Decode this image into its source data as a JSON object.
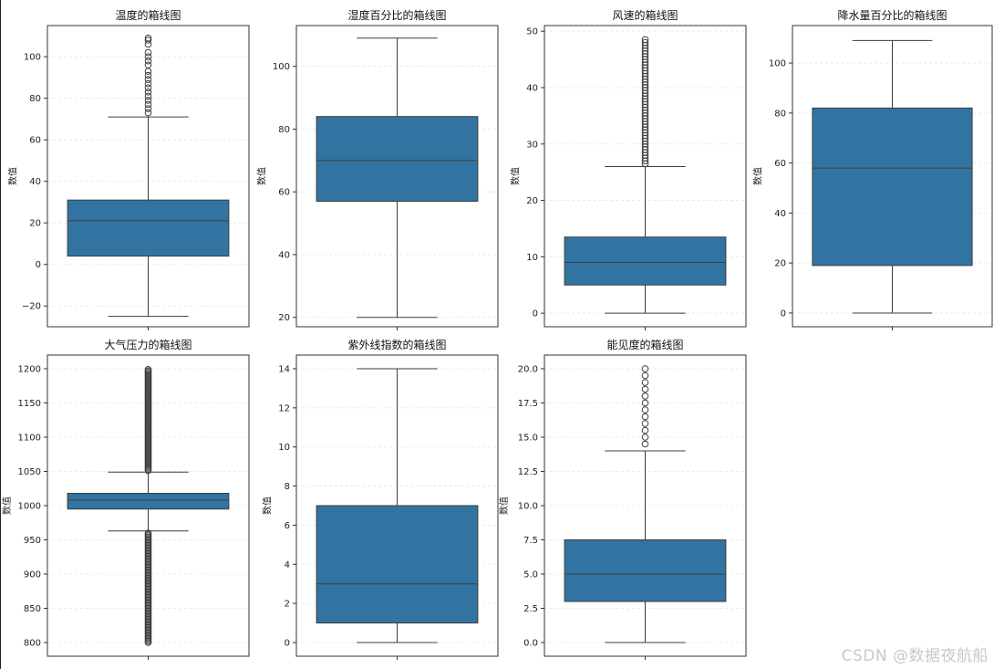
{
  "watermark": "CSDN @数据夜航船",
  "colors": {
    "box": "#3274a1",
    "line": "#3d3d3d",
    "grid": "#e6e6e6",
    "outlier_fill": "#3d3d3d"
  },
  "chart_data": [
    {
      "type": "box",
      "title": "温度的箱线图",
      "ylabel": "数值",
      "ylim": [
        -30,
        115
      ],
      "ticks": [
        -20,
        0,
        20,
        40,
        60,
        80,
        100
      ],
      "tick_labels": [
        "−20",
        "0",
        "20",
        "40",
        "60",
        "80",
        "100"
      ],
      "whisker_low": -25,
      "q1": 4,
      "median": 21,
      "q3": 31,
      "whisker_high": 71,
      "outliers": [
        73,
        75,
        77,
        79,
        81,
        83,
        85,
        87,
        89,
        91,
        93,
        96,
        98,
        100,
        102,
        106,
        108,
        109
      ],
      "grid": true
    },
    {
      "type": "box",
      "title": "湿度百分比的箱线图",
      "ylabel": "数值",
      "ylim": [
        17,
        113
      ],
      "ticks": [
        20,
        40,
        60,
        80,
        100
      ],
      "tick_labels": [
        "20",
        "40",
        "60",
        "80",
        "100"
      ],
      "whisker_low": 20,
      "q1": 57,
      "median": 70,
      "q3": 84,
      "whisker_high": 109,
      "outliers": [],
      "grid": true
    },
    {
      "type": "box",
      "title": "风速的箱线图",
      "ylabel": "数值",
      "ylim": [
        -2.4,
        51
      ],
      "ticks": [
        0,
        10,
        20,
        30,
        40,
        50
      ],
      "tick_labels": [
        "0",
        "10",
        "20",
        "30",
        "40",
        "50"
      ],
      "whisker_low": 0,
      "q1": 5,
      "median": 9,
      "q3": 13.5,
      "whisker_high": 26,
      "outliers_range": [
        26.5,
        48.5
      ],
      "outlier_step": 0.5,
      "grid": true
    },
    {
      "type": "box",
      "title": "降水量百分比的箱线图",
      "ylabel": "数值",
      "ylim": [
        -5.5,
        115
      ],
      "ticks": [
        0,
        20,
        40,
        60,
        80,
        100
      ],
      "tick_labels": [
        "0",
        "20",
        "40",
        "60",
        "80",
        "100"
      ],
      "whisker_low": 0,
      "q1": 19,
      "median": 58,
      "q3": 82,
      "whisker_high": 109,
      "outliers": [],
      "grid": true
    },
    {
      "type": "box",
      "title": "大气压力的箱线图",
      "ylabel": "数值",
      "ylim": [
        780,
        1220
      ],
      "ticks": [
        800,
        850,
        900,
        950,
        1000,
        1050,
        1100,
        1150,
        1200
      ],
      "tick_labels": [
        "800",
        "850",
        "900",
        "950",
        "1000",
        "1050",
        "1100",
        "1150",
        "1200"
      ],
      "whisker_low": 963,
      "q1": 995,
      "median": 1008,
      "q3": 1018,
      "whisker_high": 1049,
      "outliers_ranges": [
        [
          800,
          961
        ],
        [
          1051,
          1200
        ]
      ],
      "outlier_step": 2,
      "grid": true
    },
    {
      "type": "box",
      "title": "紫外线指数的箱线图",
      "ylabel": "数值",
      "ylim": [
        -0.7,
        14.7
      ],
      "ticks": [
        0,
        2,
        4,
        6,
        8,
        10,
        12,
        14
      ],
      "tick_labels": [
        "0",
        "2",
        "4",
        "6",
        "8",
        "10",
        "12",
        "14"
      ],
      "whisker_low": 0,
      "q1": 1,
      "median": 3,
      "q3": 7,
      "whisker_high": 14,
      "outliers": [],
      "grid": true
    },
    {
      "type": "box",
      "title": "能见度的箱线图",
      "ylabel": "数值",
      "ylim": [
        -1,
        21
      ],
      "ticks": [
        0,
        2.5,
        5,
        7.5,
        10,
        12.5,
        15,
        17.5,
        20
      ],
      "tick_labels": [
        "0.0",
        "2.5",
        "5.0",
        "7.5",
        "10.0",
        "12.5",
        "15.0",
        "17.5",
        "20.0"
      ],
      "whisker_low": 0,
      "q1": 3,
      "median": 5,
      "q3": 7.5,
      "whisker_high": 14,
      "outliers": [
        14.5,
        15,
        15.5,
        16,
        16.5,
        17,
        17.5,
        18,
        18.5,
        19,
        19.5,
        20
      ],
      "grid": true
    }
  ]
}
